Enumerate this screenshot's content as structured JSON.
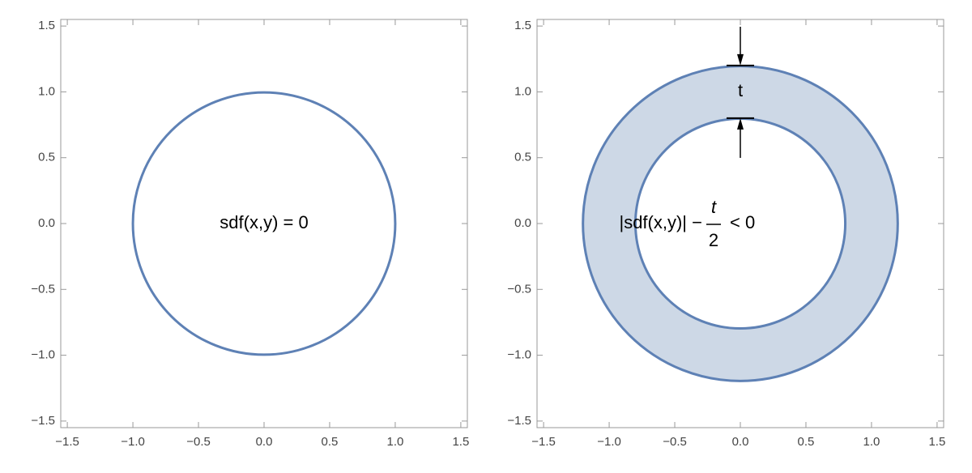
{
  "chart_data": [
    {
      "type": "contour",
      "annotation": "sdf(x,y) = 0",
      "radius": 1,
      "color": "#5e81b5",
      "xlim": [
        -1.55,
        1.55
      ],
      "ylim": [
        -1.55,
        1.55
      ],
      "xticks": [
        {
          "value": -1.5,
          "label": "−1.5"
        },
        {
          "value": -1,
          "label": "−1.0"
        },
        {
          "value": -0.5,
          "label": "−0.5"
        },
        {
          "value": 0,
          "label": "0.0"
        },
        0.5,
        {
          "value": 1,
          "label": "1.0"
        },
        1.5
      ],
      "yticks": [
        {
          "value": -1.5,
          "label": "−1.5"
        },
        {
          "value": -1,
          "label": "−1.0"
        },
        {
          "value": -0.5,
          "label": "−0.5"
        },
        {
          "value": 0,
          "label": "0.0"
        },
        0.5,
        {
          "value": 1,
          "label": "1.0"
        },
        1.5
      ]
    },
    {
      "type": "region",
      "inner_radius": 0.8,
      "outer_radius": 1.2,
      "color": "#5e81b5",
      "fill": "#cdd8e6",
      "thickness_label": "t",
      "annotation": {
        "left": "|sdf(x,y)| −",
        "numerator": "t",
        "denominator": "2",
        "right": "< 0"
      },
      "xlim": [
        -1.55,
        1.55
      ],
      "ylim": [
        -1.55,
        1.55
      ],
      "xticks": [
        {
          "value": -1.5,
          "label": "−1.5"
        },
        {
          "value": -1,
          "label": "−1.0"
        },
        {
          "value": -0.5,
          "label": "−0.5"
        },
        {
          "value": 0,
          "label": "0.0"
        },
        0.5,
        {
          "value": 1,
          "label": "1.0"
        },
        1.5
      ],
      "yticks": [
        {
          "value": -1.5,
          "label": "−1.5"
        },
        {
          "value": -1,
          "label": "−1.0"
        },
        {
          "value": -0.5,
          "label": "−0.5"
        },
        {
          "value": 0,
          "label": "0.0"
        },
        0.5,
        {
          "value": 1,
          "label": "1.0"
        },
        1.5
      ]
    }
  ]
}
